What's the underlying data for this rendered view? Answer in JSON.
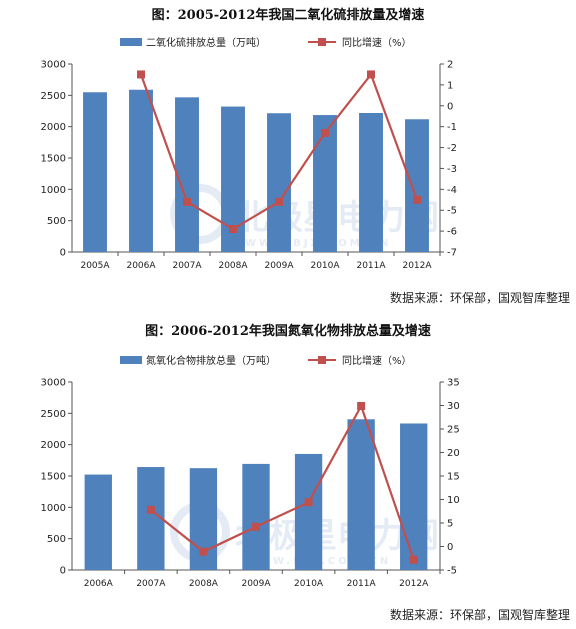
{
  "chart_data": [
    {
      "type": "bar+line",
      "title": "图：2005-2012年我国二氧化硫排放量及增速",
      "categories": [
        "2005A",
        "2006A",
        "2007A",
        "2008A",
        "2009A",
        "2010A",
        "2011A",
        "2012A"
      ],
      "series": [
        {
          "name": "二氧化硫排放总量（万吨）",
          "type": "bar",
          "axis": "left",
          "values": [
            2549,
            2589,
            2468,
            2321,
            2214,
            2185,
            2218,
            2118
          ]
        },
        {
          "name": "同比增速（%）",
          "type": "line",
          "axis": "right",
          "values": [
            null,
            1.5,
            -4.6,
            -5.9,
            -4.6,
            -1.3,
            1.5,
            -4.5
          ]
        }
      ],
      "ylim": [
        0,
        3000
      ],
      "yticks": [
        "0",
        "500",
        "1000",
        "1500",
        "2000",
        "2500",
        "3000"
      ],
      "y2lim": [
        -7,
        2
      ],
      "y2ticks": [
        "2",
        "1",
        "0",
        "-1",
        "-2",
        "-3",
        "-4",
        "-5",
        "-6",
        "-7"
      ],
      "y2tick_values": [
        2,
        1,
        0,
        -1,
        -2,
        -3,
        -4,
        -5,
        -6,
        -7
      ],
      "legend": "top",
      "grid": false,
      "colors": {
        "bar": "#4f81bd",
        "line": "#c0504d"
      },
      "source": "数据来源：环保部，国观智库整理"
    },
    {
      "type": "bar+line",
      "title": "图：2006-2012年我国氮氧化物排放总量及增速",
      "categories": [
        "2006A",
        "2007A",
        "2008A",
        "2009A",
        "2010A",
        "2011A",
        "2012A"
      ],
      "series": [
        {
          "name": "氮氧化合物排放总量（万吨）",
          "type": "bar",
          "axis": "left",
          "values": [
            1523,
            1643,
            1625,
            1693,
            1852,
            2405,
            2338
          ]
        },
        {
          "name": "同比增速（%）",
          "type": "line",
          "axis": "right",
          "values": [
            null,
            7.8,
            -1.1,
            4.2,
            9.4,
            29.9,
            -2.8
          ]
        }
      ],
      "ylim": [
        0,
        3000
      ],
      "yticks": [
        "0",
        "500",
        "1000",
        "1500",
        "2000",
        "2500",
        "3000"
      ],
      "y2lim": [
        -5,
        35
      ],
      "y2ticks": [
        "35",
        "30",
        "25",
        "20",
        "15",
        "10",
        "5",
        "0",
        "-5"
      ],
      "y2tick_values": [
        35,
        30,
        25,
        20,
        15,
        10,
        5,
        0,
        -5
      ],
      "legend": "top",
      "grid": false,
      "colors": {
        "bar": "#4f81bd",
        "line": "#c0504d"
      },
      "source": "数据来源：环保部，国观智库整理"
    }
  ],
  "watermark": {
    "text": "北极星电力网",
    "sub": "WWW.BJX.COM.CN"
  }
}
